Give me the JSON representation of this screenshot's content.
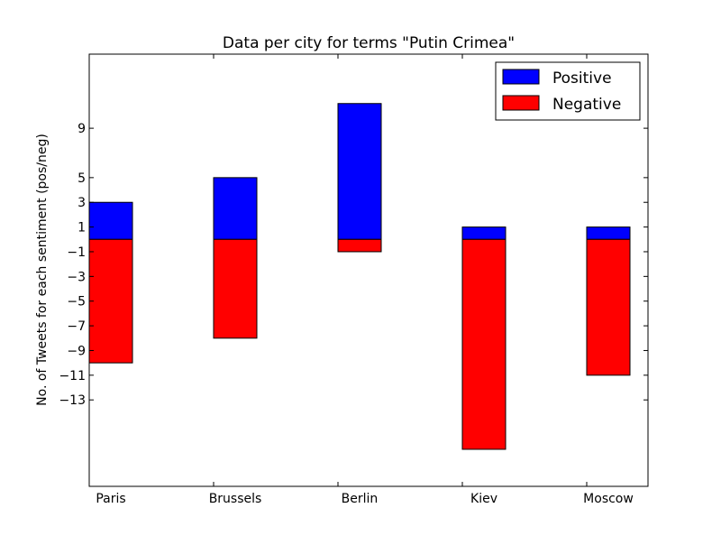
{
  "chart_data": {
    "type": "bar",
    "title": "Data per city for terms \"Putin Crimea\"",
    "xlabel": "",
    "ylabel": "No. of Tweets for each sentiment (pos/neg)",
    "categories": [
      "Paris",
      "Brussels",
      "Berlin",
      "Kiev",
      "Moscow"
    ],
    "series": [
      {
        "name": "Positive",
        "color": "#0000ff",
        "values": [
          3,
          5,
          11,
          1,
          1
        ]
      },
      {
        "name": "Negative",
        "color": "#ff0000",
        "values": [
          -10,
          -8,
          -1,
          -17,
          -11
        ]
      }
    ],
    "yticks": [
      9,
      5,
      3,
      1,
      -1,
      -3,
      -5,
      -7,
      -9,
      -11,
      -13
    ],
    "ytick_labels": [
      "9",
      "5",
      "3",
      "1",
      "−1",
      "−3",
      "−5",
      "−7",
      "−9",
      "−11",
      "−13"
    ],
    "ylim": [
      -20,
      15
    ],
    "grid": false,
    "legend_position": "top-right"
  }
}
